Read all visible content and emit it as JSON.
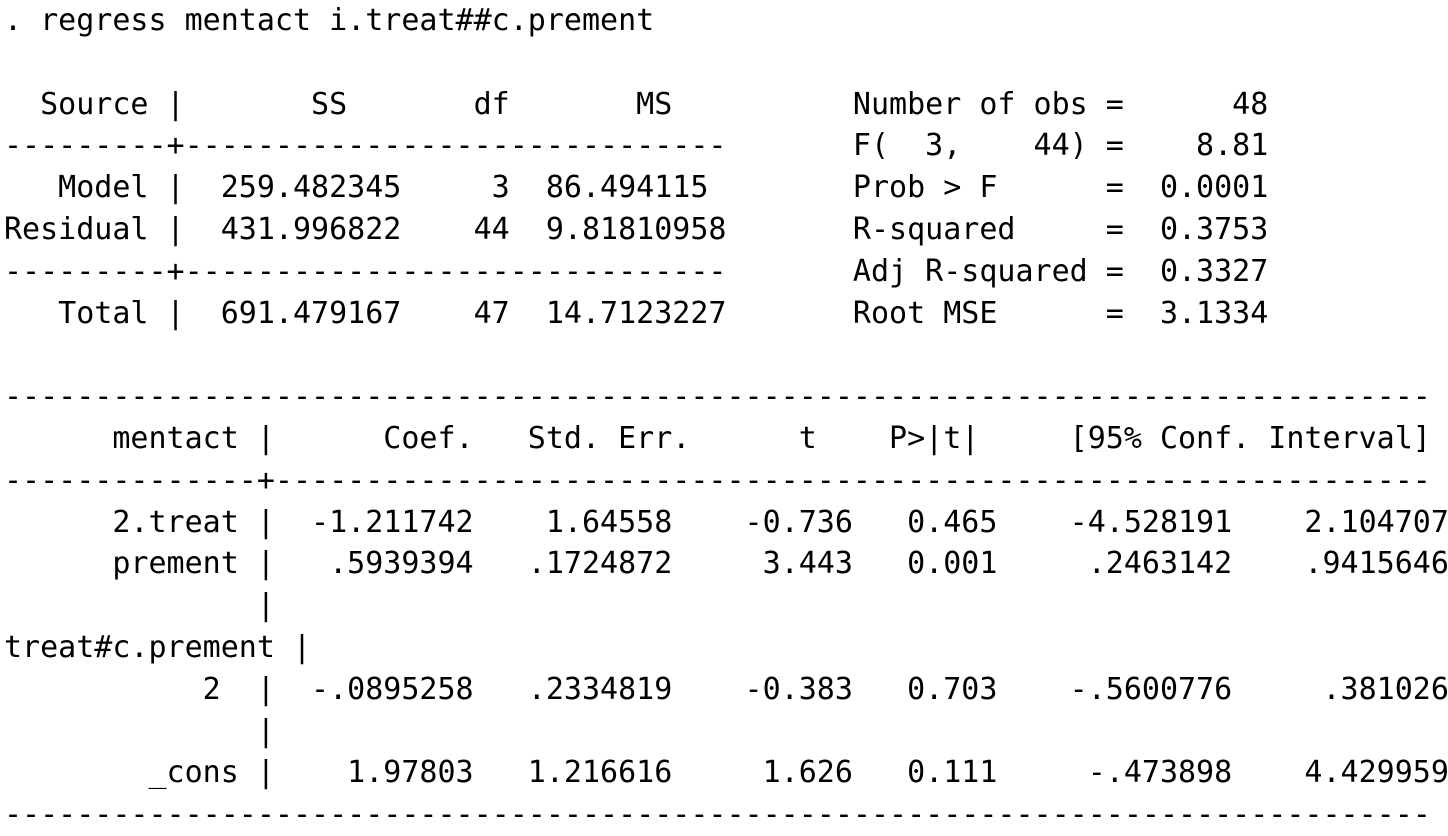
{
  "command": ". regress mentact i.treat##c.prement",
  "anova_table": {
    "headers": {
      "source": "Source",
      "ss": "SS",
      "df": "df",
      "ms": "MS"
    },
    "rows": [
      {
        "source": "Model",
        "ss": "259.482345",
        "df": "3",
        "ms": "86.494115"
      },
      {
        "source": "Residual",
        "ss": "431.996822",
        "df": "44",
        "ms": "9.81810958"
      },
      {
        "source": "Total",
        "ss": "691.479167",
        "df": "47",
        "ms": "14.7123227"
      }
    ]
  },
  "model_stats": [
    {
      "label": "Number of obs",
      "value": "48"
    },
    {
      "label": "F(  3,    44)",
      "value": "8.81"
    },
    {
      "label": "Prob > F",
      "value": "0.0001"
    },
    {
      "label": "R-squared",
      "value": "0.3753"
    },
    {
      "label": "Adj R-squared",
      "value": "0.3327"
    },
    {
      "label": "Root MSE",
      "value": "3.1334"
    }
  ],
  "coefficient_table": {
    "dependent_variable": "mentact",
    "headers": [
      "Coef.",
      "Std. Err.",
      "t",
      "P>|t|",
      "[95% Conf. Interval]"
    ],
    "rows": [
      {
        "term": "2.treat",
        "coef": "-1.211742",
        "std_err": "1.64558",
        "t": "-0.736",
        "p_value": "0.465",
        "ci_lower": "-4.528191",
        "ci_upper": "2.104707"
      },
      {
        "term": "prement",
        "coef": ".5939394",
        "std_err": ".1724872",
        "t": "3.443",
        "p_value": "0.001",
        "ci_lower": ".2463142",
        "ci_upper": ".9415646"
      },
      {
        "term": "treat#c.prement",
        "level": "2",
        "coef": "-.0895258",
        "std_err": ".2334819",
        "t": "-0.383",
        "p_value": "0.703",
        "ci_lower": "-.5600776",
        "ci_upper": ".381026"
      },
      {
        "term": "_cons",
        "coef": "1.97803",
        "std_err": "1.216616",
        "t": "1.626",
        "p_value": "0.111",
        "ci_lower": "-.473898",
        "ci_upper": "4.429959"
      }
    ]
  },
  "render": {
    "command_block": [
      ". regress mentact i.treat##c.prement"
    ],
    "anova_block": [
      "",
      "  Source |       SS       df       MS          Number of obs =      48",
      "---------+------------------------------       F(  3,    44) =    8.81",
      "   Model |  259.482345     3  86.494115        Prob > F      =  0.0001",
      "Residual |  431.996822    44  9.81810958       R-squared     =  0.3753",
      "---------+------------------------------       Adj R-squared =  0.3327",
      "   Total |  691.479167    47  14.7123227       Root MSE      =  3.1334"
    ],
    "coef_block": [
      "",
      "-------------------------------------------------------------------------------",
      "      mentact |      Coef.   Std. Err.      t    P>|t|     [95% Conf. Interval]",
      "--------------+----------------------------------------------------------------",
      "      2.treat |  -1.211742    1.64558    -0.736   0.465    -4.528191    2.104707",
      "      prement |   .5939394   .1724872     3.443   0.001     .2463142    .9415646",
      "              |",
      "treat#c.prement |",
      "           2  |  -.0895258   .2334819    -0.383   0.703    -.5600776     .381026",
      "              |",
      "        _cons |    1.97803   1.216616     1.626   0.111     -.473898    4.429959",
      "-------------------------------------------------------------------------------"
    ]
  }
}
